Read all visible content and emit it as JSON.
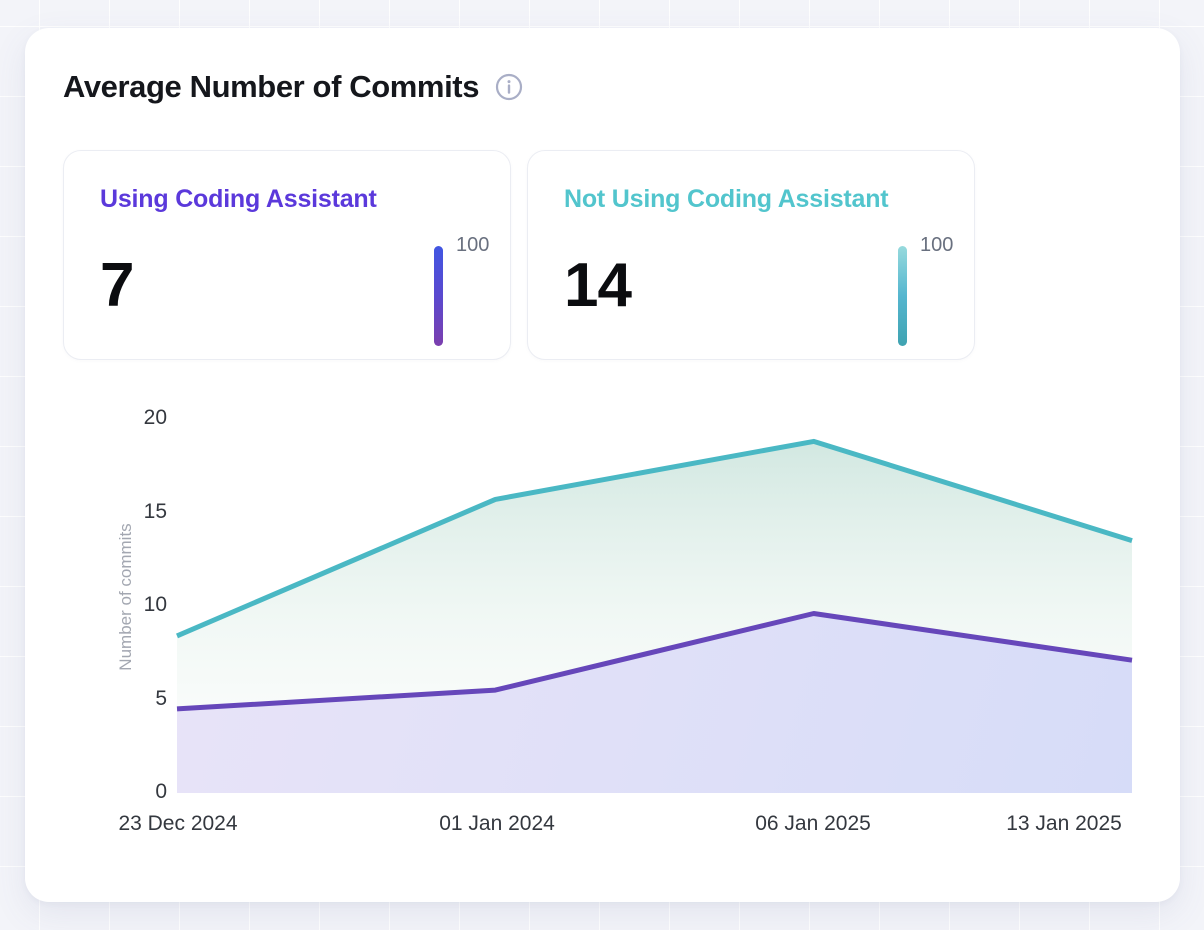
{
  "header": {
    "title": "Average Number of Commits",
    "info_icon": "info-icon",
    "info_icon_color": "#a9aec6"
  },
  "cards": [
    {
      "title": "Using Coding Assistant",
      "value": "7",
      "scale_label": "100",
      "accent_color": "#5b39db",
      "bar_gradient": [
        "#4156e2",
        "#5a49cf",
        "#7b3fae"
      ]
    },
    {
      "title": "Not Using Coding Assistant",
      "value": "14",
      "scale_label": "100",
      "accent_color": "#52c5cd",
      "bar_gradient": [
        "#97dadd",
        "#55b6cf",
        "#3fa3b1"
      ]
    }
  ],
  "chart_data": {
    "type": "area",
    "title": "",
    "xlabel": "",
    "ylabel": "Number of commits",
    "x": [
      "23 Dec 2024",
      "01 Jan 2024",
      "06 Jan 2025",
      "13 Jan 2025"
    ],
    "yticks": [
      0,
      5,
      10,
      15,
      20
    ],
    "ylim": [
      0,
      20
    ],
    "grid": false,
    "legend_position": "none",
    "series": [
      {
        "name": "Using Coding Assistant",
        "values": [
          4.5,
          5.5,
          9.6,
          7.1
        ],
        "line_color": "#6647ba",
        "fill_stops": [
          {
            "offset": "0%",
            "color": "rgba(231,226,248,0.95)"
          },
          {
            "offset": "100%",
            "color": "rgba(213,219,248,0.97)"
          }
        ]
      },
      {
        "name": "Not Using Coding Assistant",
        "values": [
          8.4,
          15.7,
          18.8,
          13.5
        ],
        "line_color": "#4ab8c4",
        "fill_stops": [
          {
            "offset": "0%",
            "color": "rgba(150,201,186,0.48)"
          },
          {
            "offset": "55%",
            "color": "rgba(210,232,222,0.30)"
          },
          {
            "offset": "100%",
            "color": "rgba(238,246,240,0.12)"
          }
        ]
      }
    ]
  }
}
